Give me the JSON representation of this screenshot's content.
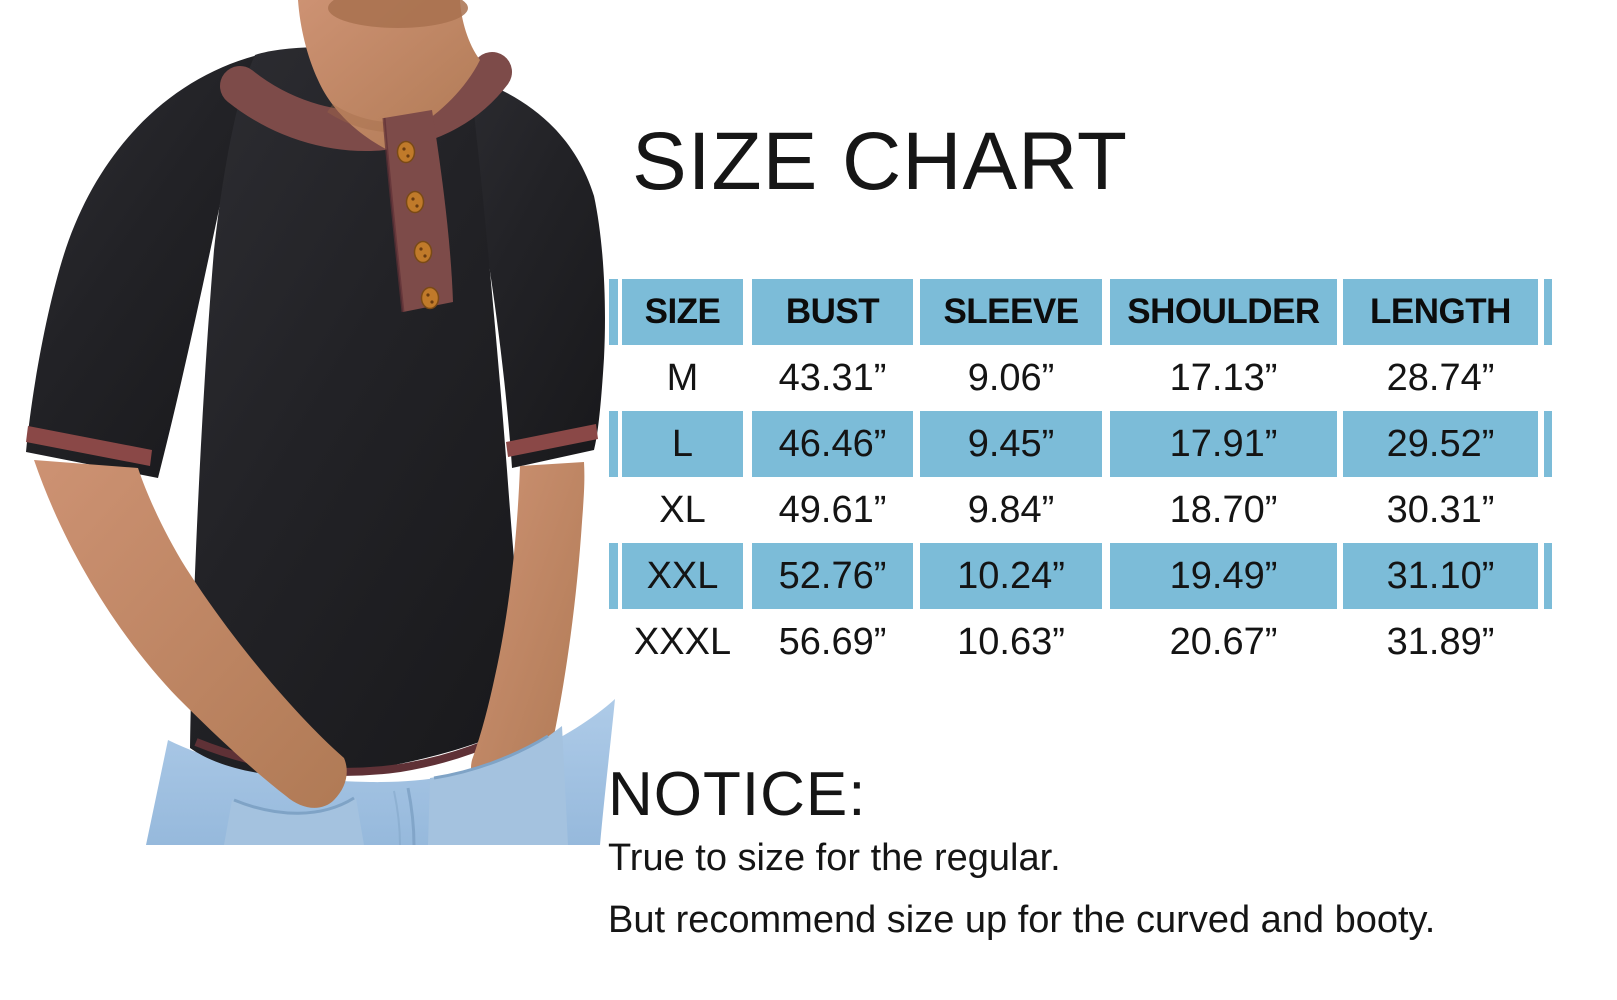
{
  "page": {
    "title": "SIZE CHART",
    "notice_heading": "NOTICE:",
    "notice_lines": [
      "True to size for the regular.",
      "But recommend size up for the curved and booty."
    ]
  },
  "photo": {
    "subject": "man-wearing-black-henley-shirt-and-jeans",
    "colors": {
      "shirt": "#232327",
      "collar_trim": "#7d4b49",
      "cuff_stripe": "#8a4847",
      "hem_stripe": "#5f3136",
      "buttons": "#c07a2a",
      "jeans": "#a2c2e2",
      "skin": "#c28664"
    }
  },
  "chart_data": {
    "type": "table",
    "title": "SIZE CHART",
    "columns": [
      "SIZE",
      "BUST",
      "SLEEVE",
      "SHOULDER",
      "LENGTH"
    ],
    "rows": [
      [
        "M",
        "43.31”",
        "9.06”",
        "17.13”",
        "28.74”"
      ],
      [
        "L",
        "46.46”",
        "9.45”",
        "17.91”",
        "29.52”"
      ],
      [
        "XL",
        "49.61”",
        "9.84”",
        "18.70”",
        "30.31”"
      ],
      [
        "XXL",
        "52.76”",
        "10.24”",
        "19.49”",
        "31.10”"
      ],
      [
        "XXXL",
        "56.69”",
        "10.63”",
        "20.67”",
        "31.89”"
      ]
    ],
    "header_bg": "#7cbcd8",
    "stripe_bg": "#7cbcd8",
    "plain_bg": "#ffffff",
    "row_fill_pattern": [
      "blue",
      "white",
      "blue",
      "white",
      "blue",
      "white"
    ],
    "grid": "white gaps between cells",
    "legend_position": "none"
  }
}
